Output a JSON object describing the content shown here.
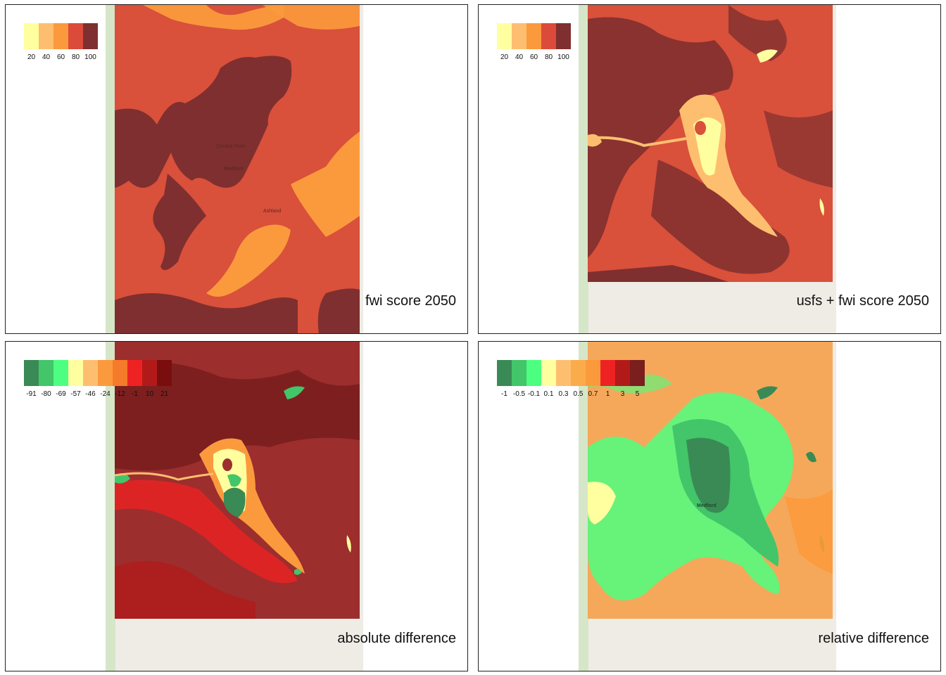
{
  "panels": [
    {
      "id": "fwi",
      "title": "fwi score 2050",
      "legend": {
        "colors": [
          "#ffffa0",
          "#fdbf6f",
          "#fb9a3c",
          "#dc4b3a",
          "#7f2f2f"
        ],
        "labels": [
          "20",
          "40",
          "60",
          "80",
          "100"
        ]
      },
      "town_labels": [
        "Central Point",
        "Medford",
        "Ashland"
      ]
    },
    {
      "id": "usfs_fwi",
      "title": "usfs + fwi score 2050",
      "legend": {
        "colors": [
          "#ffffa0",
          "#fdbf6f",
          "#fb9a3c",
          "#dc4b3a",
          "#7f2f2f"
        ],
        "labels": [
          "20",
          "40",
          "60",
          "80",
          "100"
        ]
      }
    },
    {
      "id": "abs_diff",
      "title": "absolute difference",
      "legend": {
        "colors": [
          "#3a8a55",
          "#43c56a",
          "#4dff80",
          "#ffffa0",
          "#fdbf6f",
          "#fb9a3c",
          "#f57b2a",
          "#ee2222",
          "#b21a1a",
          "#7a0e0e"
        ],
        "labels": [
          "-91",
          "-80",
          "-69",
          "-57",
          "-46",
          "-24",
          "-12",
          "-1",
          "10",
          "21"
        ]
      }
    },
    {
      "id": "rel_diff",
      "title": "relative difference",
      "legend": {
        "colors": [
          "#3a8a55",
          "#43c56a",
          "#4dff80",
          "#ffffa0",
          "#fdbf6f",
          "#fbac4a",
          "#fb9a3c",
          "#ee2222",
          "#b21a1a",
          "#7a1e1e"
        ],
        "labels": [
          "-1",
          "-0.5",
          "-0.1",
          "0.1",
          "0.3",
          "0.5",
          "0.7",
          "1",
          "3",
          "5"
        ]
      },
      "town_labels": [
        "Medford"
      ]
    }
  ]
}
